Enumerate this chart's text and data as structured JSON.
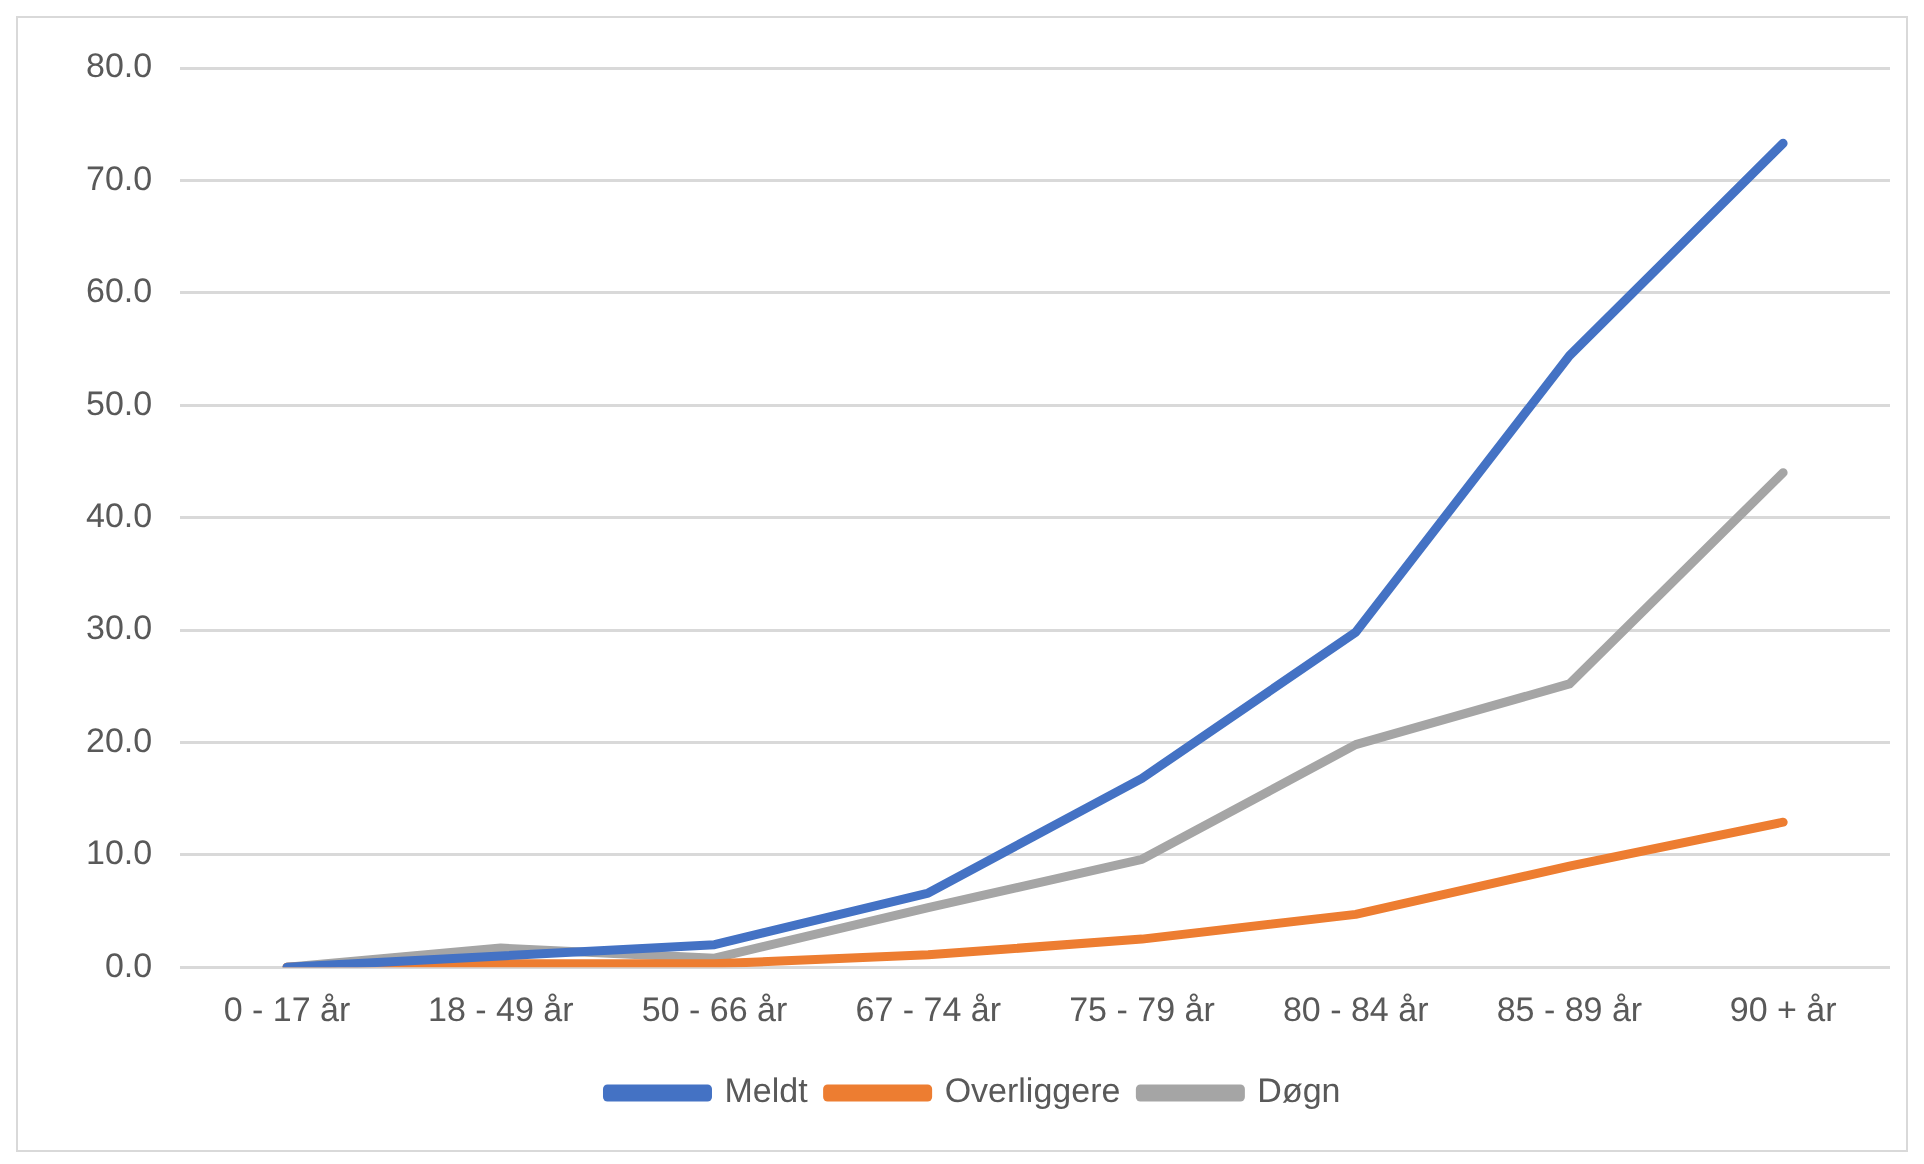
{
  "chart_data": {
    "type": "line",
    "categories": [
      "0 - 17 år",
      "18 - 49 år",
      "50 - 66 år",
      "67 - 74 år",
      "75 - 79 år",
      "80 - 84 år",
      "85 - 89 år",
      "90 + år"
    ],
    "series": [
      {
        "name": "Meldt",
        "color": "#4472c4",
        "values": [
          0,
          1.0,
          2.0,
          6.6,
          16.8,
          29.8,
          54.4,
          73.3
        ]
      },
      {
        "name": "Overliggere",
        "color": "#ed7d31",
        "values": [
          0,
          0.3,
          0.3,
          1.1,
          2.5,
          4.7,
          9.0,
          12.9
        ]
      },
      {
        "name": "Døgn",
        "color": "#a5a5a5",
        "values": [
          0,
          1.7,
          0.8,
          5.3,
          9.6,
          19.8,
          25.2,
          44.0
        ]
      }
    ],
    "ylim": [
      0,
      80
    ],
    "yticks": [
      {
        "value": 0,
        "label": "0.0"
      },
      {
        "value": 10,
        "label": "10.0"
      },
      {
        "value": 20,
        "label": "20.0"
      },
      {
        "value": 30,
        "label": "30.0"
      },
      {
        "value": 40,
        "label": "40.0"
      },
      {
        "value": 50,
        "label": "50.0"
      },
      {
        "value": 60,
        "label": "60.0"
      },
      {
        "value": 70,
        "label": "70.0"
      },
      {
        "value": 80,
        "label": "80.0"
      }
    ],
    "grid": "y",
    "legend": "bottom",
    "marker": "none",
    "line_style": "solid"
  }
}
